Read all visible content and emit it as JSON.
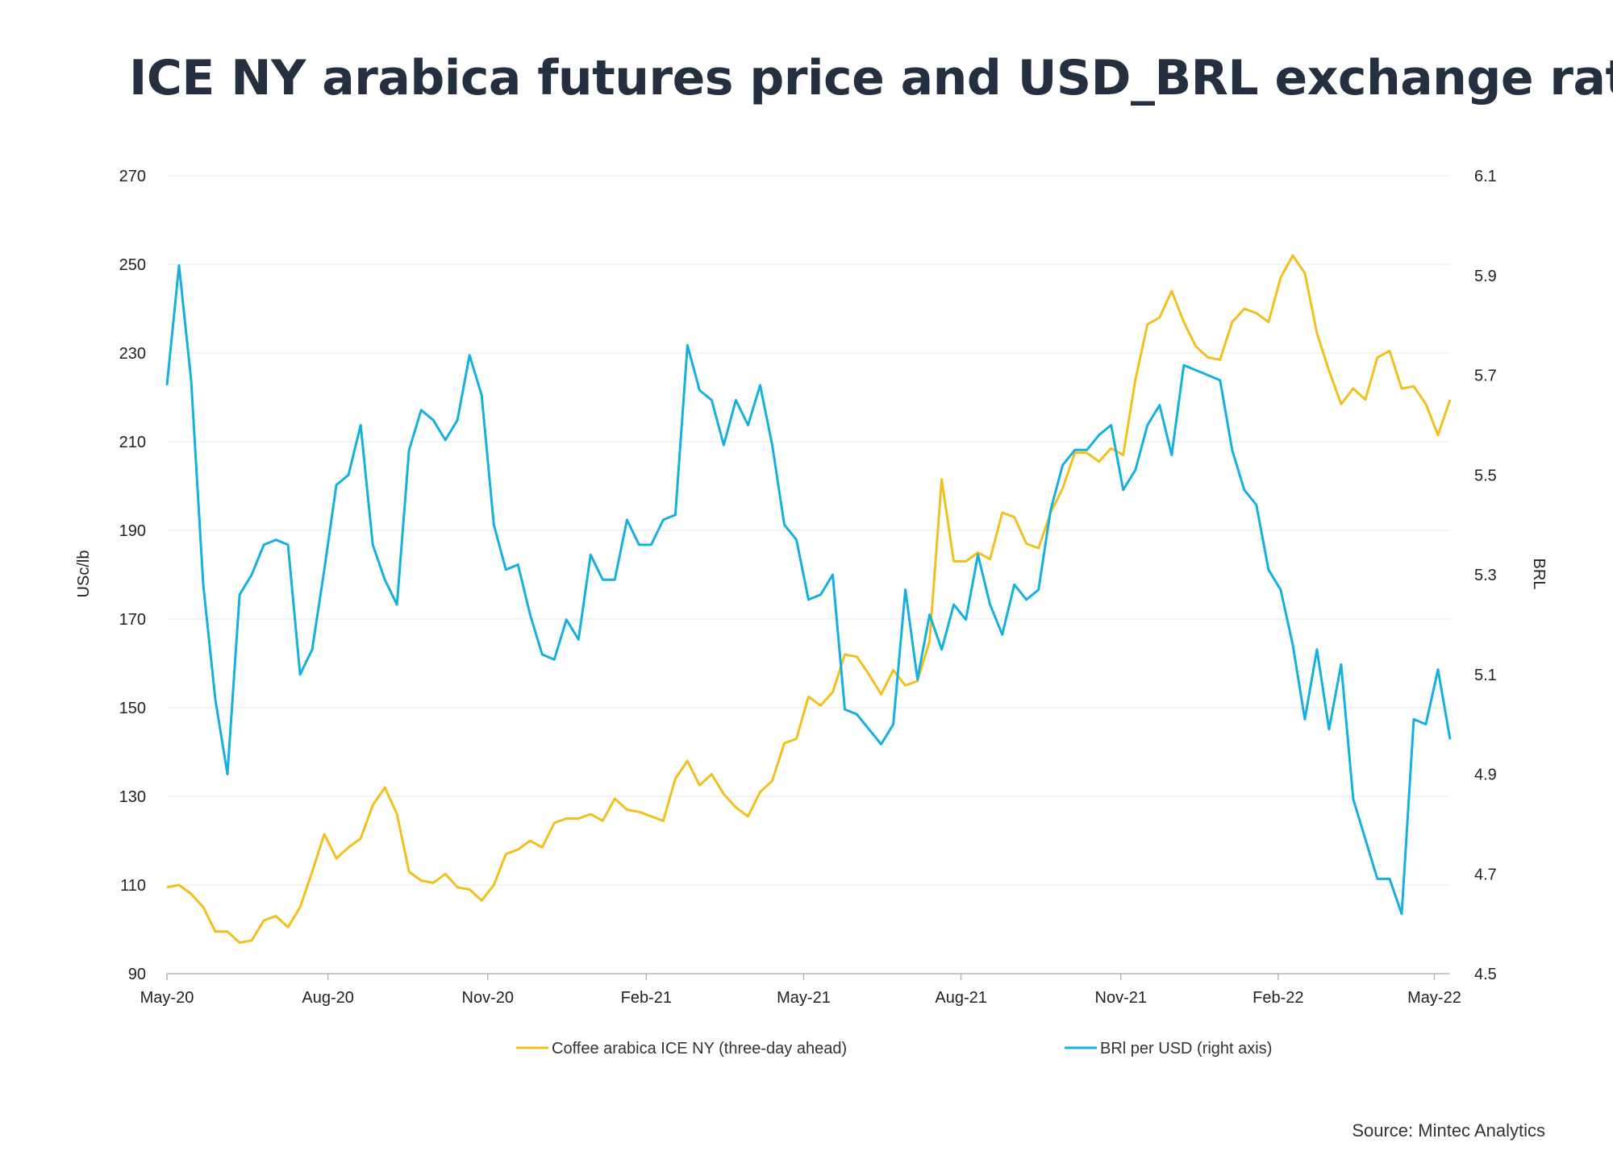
{
  "chart_data": {
    "type": "line",
    "title": "ICE NY arabica futures price and USD_BRL exchange rate",
    "ylabel": "USc/lb",
    "y2label": "BRL",
    "ylim": [
      90,
      270
    ],
    "y2lim": [
      4.5,
      6.1
    ],
    "yticks": [
      "90",
      "110",
      "130",
      "150",
      "170",
      "190",
      "210",
      "230",
      "250",
      "270"
    ],
    "y2ticks": [
      "4.5",
      "4.7",
      "4.9",
      "5.1",
      "5.3",
      "5.5",
      "5.7",
      "5.9",
      "6.1"
    ],
    "x_tick_labels": [
      "May-20",
      "Aug-20",
      "Nov-20",
      "Feb-21",
      "May-21",
      "Aug-21",
      "Nov-21",
      "Feb-22",
      "May-22"
    ],
    "x_tick_weeks": [
      0,
      13.3,
      26.5,
      39.6,
      52.6,
      65.6,
      78.8,
      91.8,
      104.7
    ],
    "series": [
      {
        "name": "Coffee arabica ICE NY (three-day ahead)",
        "color": "#f2c01e",
        "axis": "left",
        "values": [
          109.5,
          110,
          108,
          105,
          99.5,
          99.5,
          97,
          97.5,
          102,
          103,
          100.5,
          105,
          113,
          121.5,
          116,
          118.5,
          120.5,
          128,
          132,
          126,
          113,
          111,
          110.5,
          112.5,
          109.5,
          109,
          106.5,
          110,
          117,
          118,
          120,
          118.5,
          124,
          125,
          125,
          126,
          124.5,
          129.5,
          127,
          126.5,
          125.5,
          124.5,
          134,
          138,
          132.5,
          135,
          130.5,
          127.5,
          125.5,
          131,
          133.5,
          142,
          143,
          152.5,
          150.5,
          153.5,
          162,
          161.5,
          157.5,
          153,
          158.5,
          155,
          156,
          165,
          201.5,
          183,
          183,
          185,
          183.5,
          194,
          193,
          187,
          186,
          194,
          199.5,
          207.5,
          207.5,
          205.5,
          208.5,
          207,
          224,
          236.5,
          238,
          244,
          237,
          231.5,
          229,
          228.5,
          237,
          240,
          239,
          237,
          247,
          252,
          248,
          234.5,
          226,
          218.5,
          222,
          219.5,
          229,
          230.5,
          222,
          222.5,
          218.5,
          211.5,
          219.5
        ]
      },
      {
        "name": "BRl per USD (right axis)",
        "color": "#16b0de",
        "axis": "right",
        "values": [
          5.68,
          5.92,
          5.69,
          5.28,
          5.05,
          4.9,
          5.26,
          5.3,
          5.36,
          5.37,
          5.36,
          5.1,
          5.15,
          5.31,
          5.48,
          5.5,
          5.6,
          5.36,
          5.29,
          5.24,
          5.55,
          5.63,
          5.61,
          5.57,
          5.61,
          5.74,
          5.66,
          5.4,
          5.31,
          5.32,
          5.22,
          5.14,
          5.13,
          5.21,
          5.17,
          5.34,
          5.29,
          5.29,
          5.41,
          5.36,
          5.36,
          5.41,
          5.42,
          5.76,
          5.67,
          5.65,
          5.56,
          5.65,
          5.6,
          5.68,
          5.56,
          5.4,
          5.37,
          5.25,
          5.26,
          5.3,
          5.03,
          5.02,
          4.99,
          4.96,
          5.0,
          5.27,
          5.09,
          5.22,
          5.15,
          5.24,
          5.21,
          5.34,
          5.24,
          5.18,
          5.28,
          5.25,
          5.27,
          5.43,
          5.52,
          5.55,
          5.55,
          5.58,
          5.6,
          5.47,
          5.51,
          5.6,
          5.64,
          5.54,
          5.72,
          5.71,
          5.7,
          5.69,
          5.55,
          5.47,
          5.44,
          5.31,
          5.27,
          5.16,
          5.01,
          5.15,
          4.99,
          5.12,
          4.85,
          4.77,
          4.69,
          4.69,
          4.62,
          5.01,
          5.0,
          5.11,
          4.97
        ]
      }
    ],
    "legend": "bottom",
    "grid": true
  },
  "source": "Source: Mintec Analytics"
}
